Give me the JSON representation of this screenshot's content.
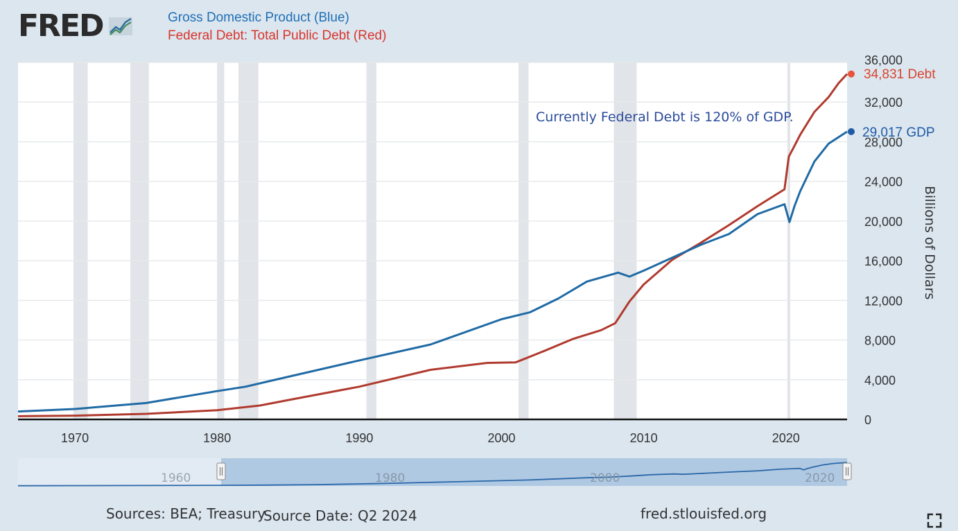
{
  "logo": {
    "text": "FRED"
  },
  "legend": {
    "line1": "Gross Domestic Product (Blue)",
    "line2": "Federal Debt: Total Public Debt (Red)"
  },
  "annotation": "Currently Federal Debt is 120% of GDP.",
  "end_labels": {
    "debt": "34,831 Debt",
    "gdp": "29,017 GDP"
  },
  "colors": {
    "gdp": "#1f6aa5",
    "debt": "#b03a2e",
    "debt_dot": "#e8533a",
    "annotation": "#2a4a9a"
  },
  "footer": {
    "sources": "Sources: BEA; Treasury",
    "source_date": "Source Date: Q2 2024",
    "site": "fred.stlouisfed.org"
  },
  "navigator": {
    "labels": [
      "1960",
      "1980",
      "2000",
      "2020"
    ]
  },
  "chart_data": {
    "type": "line",
    "title": "",
    "ylabel": "Billions of Dollars",
    "xlim": [
      1966,
      2024.3
    ],
    "ylim": [
      0,
      36000
    ],
    "x_ticks": [
      "1970",
      "1980",
      "1990",
      "2000",
      "2010",
      "2020"
    ],
    "y_ticks": [
      "0",
      "4,000",
      "8,000",
      "12,000",
      "16,000",
      "20,000",
      "24,000",
      "28,000",
      "32,000",
      "36,000"
    ],
    "recessions": [
      [
        1969.9,
        1970.9
      ],
      [
        1973.9,
        1975.2
      ],
      [
        1980.0,
        1980.5
      ],
      [
        1981.5,
        1982.9
      ],
      [
        1990.5,
        1991.2
      ],
      [
        2001.2,
        2001.9
      ],
      [
        2007.9,
        2009.5
      ],
      [
        2020.1,
        2020.3
      ]
    ],
    "series": [
      {
        "name": "Gross Domestic Product",
        "x": [
          1966,
          1970,
          1975,
          1980,
          1982,
          1985,
          1990,
          1995,
          2000,
          2002,
          2004,
          2006,
          2008.2,
          2009,
          2010,
          2012,
          2014,
          2016,
          2018,
          2019.9,
          2020.25,
          2020.6,
          2021,
          2022,
          2023,
          2024.3
        ],
        "values": [
          800,
          1050,
          1650,
          2850,
          3300,
          4300,
          5950,
          7550,
          10100,
          10800,
          12200,
          13900,
          14800,
          14400,
          15000,
          16300,
          17600,
          18700,
          20700,
          21700,
          19900,
          21500,
          23000,
          26000,
          27800,
          29017
        ]
      },
      {
        "name": "Federal Debt: Total Public Debt",
        "x": [
          1966,
          1970,
          1975,
          1980,
          1983,
          1985,
          1990,
          1995,
          1999,
          2001,
          2003,
          2005,
          2007,
          2008,
          2009,
          2010,
          2012,
          2014,
          2016,
          2018,
          2019.9,
          2020.2,
          2020.5,
          2021,
          2022,
          2023,
          2023.7,
          2024.3
        ],
        "values": [
          320,
          380,
          560,
          930,
          1400,
          1950,
          3300,
          5000,
          5700,
          5750,
          6900,
          8100,
          9000,
          9700,
          11900,
          13600,
          16100,
          17800,
          19600,
          21500,
          23200,
          26500,
          27300,
          28700,
          31000,
          32500,
          33900,
          34831
        ]
      }
    ]
  }
}
